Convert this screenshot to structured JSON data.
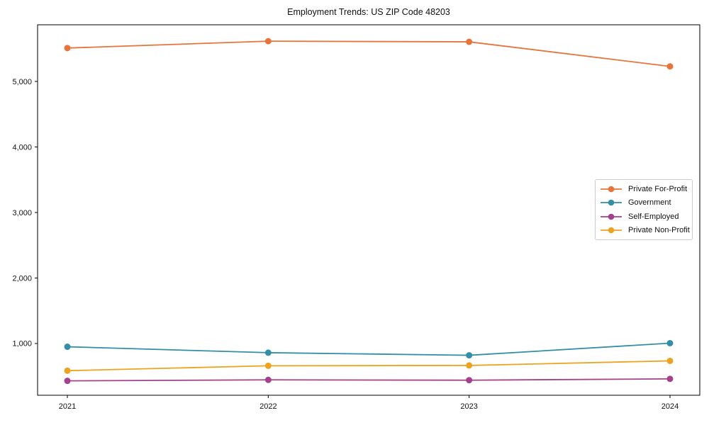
{
  "chart_data": {
    "type": "line",
    "title": "Employment Trends: US ZIP Code 48203",
    "xlabel": "",
    "ylabel": "",
    "x": [
      "2021",
      "2022",
      "2023",
      "2024"
    ],
    "series": [
      {
        "name": "Private For-Profit",
        "color": "#e8743b",
        "values": [
          5510,
          5615,
          5605,
          5230
        ]
      },
      {
        "name": "Government",
        "color": "#338fa6",
        "values": [
          950,
          860,
          820,
          1005
        ]
      },
      {
        "name": "Self-Employed",
        "color": "#a4418c",
        "values": [
          430,
          445,
          440,
          460
        ]
      },
      {
        "name": "Private Non-Profit",
        "color": "#eca420",
        "values": [
          585,
          660,
          665,
          735
        ]
      }
    ],
    "yticks": [
      {
        "value": 1000,
        "label": "1,000"
      },
      {
        "value": 2000,
        "label": "2,000"
      },
      {
        "value": 3000,
        "label": "3,000"
      },
      {
        "value": 4000,
        "label": "4,000"
      },
      {
        "value": 5000,
        "label": "5,000"
      }
    ],
    "ylim": [
      210,
      5865
    ],
    "grid": false,
    "legend_position": "center right",
    "marker": "circle",
    "axis_color": "#000000",
    "text_color": "#111111",
    "background": "#ffffff"
  }
}
